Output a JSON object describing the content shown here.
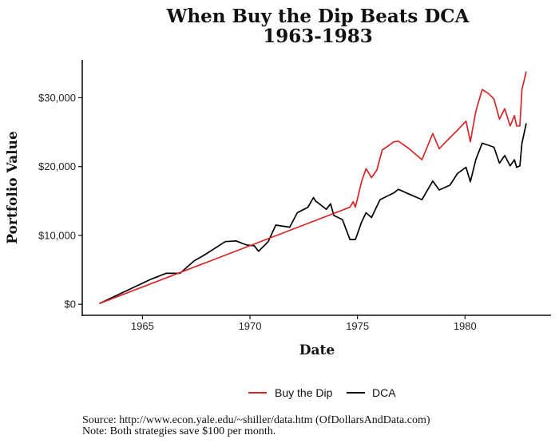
{
  "chart_data": {
    "type": "line",
    "title": [
      "When Buy the Dip Beats DCA",
      "1963-1983"
    ],
    "xlabel": "Date",
    "ylabel": "Portfolio Value",
    "xlim": [
      1962.2,
      1984.0
    ],
    "ylim": [
      -1600,
      35500
    ],
    "xticks": [
      1965,
      1970,
      1975,
      1980
    ],
    "xtick_labels": [
      "1965",
      "1970",
      "1975",
      "1980"
    ],
    "yticks": [
      0,
      10000,
      20000,
      30000
    ],
    "ytick_labels": [
      "$0",
      "$10,000",
      "$20,000",
      "$30,000"
    ],
    "grid": false,
    "legend_position": "bottom",
    "series": [
      {
        "name": "Buy the Dip",
        "color": "#d62728",
        "x": [
          1963.0,
          1974.65,
          1974.8,
          1974.9,
          1975.2,
          1975.4,
          1975.65,
          1975.9,
          1976.15,
          1976.7,
          1976.9,
          1977.4,
          1978.0,
          1978.5,
          1978.8,
          1979.3,
          1979.65,
          1980.05,
          1980.25,
          1980.5,
          1980.8,
          1981.1,
          1981.35,
          1981.6,
          1981.85,
          1982.1,
          1982.3,
          1982.4,
          1982.55,
          1982.65,
          1982.85
        ],
        "y": [
          100,
          14100,
          14900,
          14100,
          17900,
          19700,
          18400,
          19500,
          22400,
          23600,
          23700,
          22600,
          21000,
          24800,
          22600,
          24200,
          25300,
          26600,
          23600,
          28000,
          31200,
          30600,
          29800,
          26900,
          28400,
          25900,
          27400,
          25900,
          25900,
          31200,
          33800
        ]
      },
      {
        "name": "DCA",
        "color": "#000000",
        "x": [
          1963.0,
          1965.37,
          1966.1,
          1966.75,
          1967.4,
          1967.85,
          1968.3,
          1968.85,
          1969.35,
          1969.85,
          1970.2,
          1970.4,
          1970.85,
          1971.2,
          1971.85,
          1972.2,
          1972.7,
          1972.95,
          1973.05,
          1973.55,
          1973.75,
          1973.9,
          1974.3,
          1974.65,
          1974.9,
          1975.2,
          1975.4,
          1975.65,
          1976.05,
          1976.7,
          1976.9,
          1977.4,
          1978.0,
          1978.5,
          1978.8,
          1979.3,
          1979.65,
          1980.05,
          1980.25,
          1980.5,
          1980.8,
          1981.1,
          1981.35,
          1981.6,
          1981.85,
          1982.1,
          1982.3,
          1982.4,
          1982.55,
          1982.65,
          1982.85
        ],
        "y": [
          100,
          3600,
          4500,
          4500,
          6300,
          7100,
          8000,
          9100,
          9200,
          8600,
          8500,
          7700,
          9100,
          11500,
          11200,
          13300,
          14100,
          15500,
          15000,
          13800,
          14600,
          12900,
          12300,
          9400,
          9400,
          12000,
          13300,
          12600,
          15200,
          16200,
          16700,
          16000,
          15200,
          17900,
          16600,
          17300,
          19000,
          19900,
          17800,
          21000,
          23400,
          23100,
          22800,
          20500,
          21600,
          20100,
          21000,
          19900,
          20100,
          23400,
          26300
        ]
      }
    ]
  },
  "captions": {
    "source": "Source:  http://www.econ.yale.edu/~shiller/data.htm (OfDollarsAndData.com)",
    "note": "Note: Both strategies save $100 per month."
  }
}
